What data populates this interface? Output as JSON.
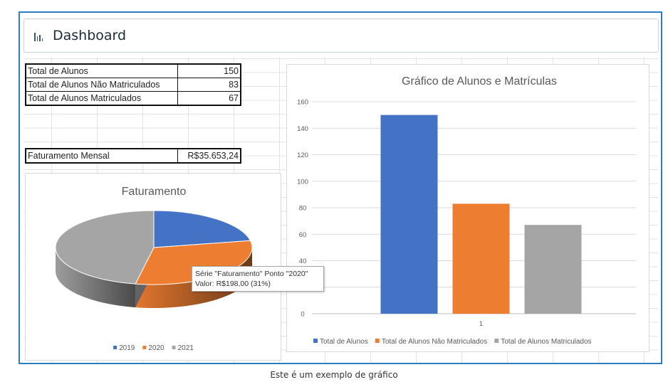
{
  "header": {
    "title": "Dashboard",
    "icon": "bar-chart-icon"
  },
  "summary_table": {
    "rows": [
      {
        "label": "Total de Alunos",
        "value": "150"
      },
      {
        "label": "Total de Alunos Não Matriculados",
        "value": "83"
      },
      {
        "label": "Total de Alunos Matriculados",
        "value": "67"
      }
    ]
  },
  "revenue": {
    "label": "Faturamento Mensal",
    "value": "R$35.653,24"
  },
  "tooltip": {
    "line1": "Série \"Faturamento\" Ponto \"2020\"",
    "line2": "Valor:  R$198,00  (31%)"
  },
  "caption": "Este é um exemplo de gráfico",
  "chart_data": [
    {
      "type": "bar",
      "title": "Gráfico de Alunos e Matrículas",
      "categories": [
        "1"
      ],
      "ylim": [
        0,
        160
      ],
      "yticks": [
        0,
        20,
        40,
        60,
        80,
        100,
        120,
        140,
        160
      ],
      "grid": true,
      "legend_position": "bottom",
      "series": [
        {
          "name": "Total de Alunos",
          "values": [
            150
          ],
          "color": "#4472c4"
        },
        {
          "name": "Total de Alunos Não Matriculados",
          "values": [
            83
          ],
          "color": "#ed7d31"
        },
        {
          "name": "Total de Alunos Matriculados",
          "values": [
            67
          ],
          "color": "#a5a5a5"
        }
      ]
    },
    {
      "type": "pie",
      "title": "Faturamento",
      "legend_position": "bottom",
      "slices": [
        {
          "label": "2019",
          "percent": 22,
          "color": "#4472c4"
        },
        {
          "label": "2020",
          "percent": 31,
          "color": "#ed7d31"
        },
        {
          "label": "2021",
          "percent": 47,
          "color": "#a5a5a5"
        }
      ]
    }
  ]
}
